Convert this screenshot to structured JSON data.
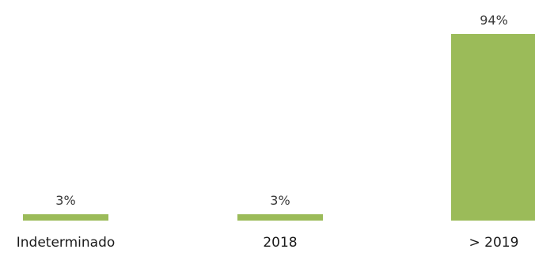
{
  "chart_data": {
    "type": "bar",
    "categories": [
      "Indeterminado",
      "2018",
      "> 2019"
    ],
    "values": [
      3,
      3,
      94
    ],
    "value_labels": [
      "3%",
      "3%",
      "94%"
    ],
    "title": "",
    "xlabel": "",
    "ylabel": "",
    "ylim": [
      0,
      100
    ],
    "grid": false,
    "legend": "none",
    "bar_color": "#9bbb59"
  }
}
